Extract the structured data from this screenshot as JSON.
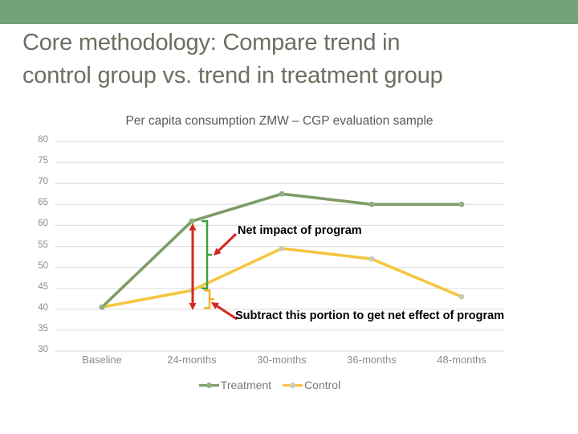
{
  "slide": {
    "title_lines": [
      "Core methodology: Compare trend in",
      "control group vs. trend in treatment group"
    ]
  },
  "colors": {
    "top_bar": "#73A377",
    "slide_title": "#6A7060",
    "chart_title": "#595959",
    "axis_text": "#8C8C8C",
    "gridline": "#DCDCDC",
    "treatment": "#7D9C66",
    "treatment_marker": "#92AC85",
    "control": "#F6C53F",
    "control_marker": "#C7CBBB",
    "arrow_red": "#D3281F",
    "brace_green": "#3BA23D",
    "brace_yellow": "#F0B428",
    "legend_text": "#7A7A7A",
    "annotation_text": "#000000"
  },
  "chart_data": {
    "type": "line",
    "title": "Per capita consumption ZMW – CGP evaluation sample",
    "categories": [
      "Baseline",
      "24-months",
      "30-months",
      "36-months",
      "48-months"
    ],
    "series": [
      {
        "name": "Treatment",
        "values": [
          40.5,
          61,
          67.5,
          65,
          65
        ]
      },
      {
        "name": "Control",
        "values": [
          40.5,
          44.5,
          54.5,
          52,
          43
        ]
      }
    ],
    "ylim": [
      30,
      80
    ],
    "ytick_step": 5,
    "yticks": [
      30,
      35,
      40,
      45,
      50,
      55,
      60,
      65,
      70,
      75,
      80
    ],
    "grid": true,
    "legend_position": "bottom",
    "annotations": [
      {
        "text": "Net impact of program",
        "span_from": 61,
        "span_to": 45
      },
      {
        "text": "Subtract this portion to get net effect of program",
        "span_from": 44.5,
        "span_to": 40.3
      }
    ],
    "gross_change_arrow": {
      "at_category": "24-months",
      "from": 60.5,
      "to": 39.8
    }
  }
}
